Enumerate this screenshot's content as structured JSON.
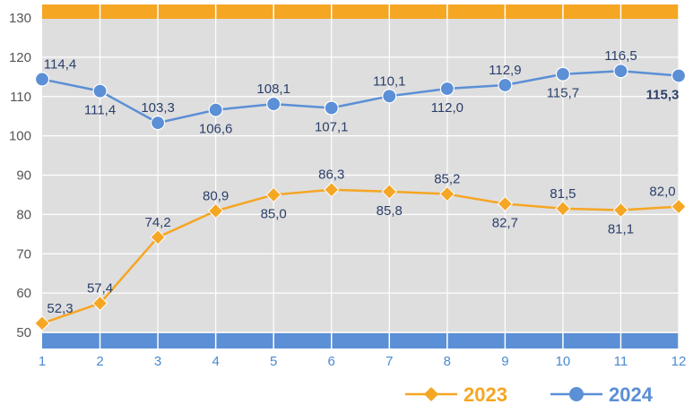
{
  "chart_data": {
    "type": "line",
    "x": [
      1,
      2,
      3,
      4,
      5,
      6,
      7,
      8,
      9,
      10,
      11,
      12
    ],
    "ylim": [
      50,
      130
    ],
    "yticks": [
      50,
      60,
      70,
      80,
      90,
      100,
      110,
      120,
      130
    ],
    "grid": true,
    "legend_position": "bottom-right",
    "series": [
      {
        "name": "2023",
        "color": "#f5a623",
        "marker": "diamond",
        "values": [
          52.3,
          57.4,
          74.2,
          80.9,
          85.0,
          86.3,
          85.8,
          85.2,
          82.7,
          81.5,
          81.1,
          82.0
        ],
        "labels": [
          "52,3",
          "57,4",
          "74,2",
          "80,9",
          "85,0",
          "86,3",
          "85,8",
          "85,2",
          "82,7",
          "81,5",
          "81,1",
          "82,0"
        ],
        "label_side": [
          "above",
          "above",
          "above",
          "above",
          "below",
          "above",
          "below",
          "above",
          "below",
          "above",
          "below",
          "above"
        ]
      },
      {
        "name": "2024",
        "color": "#5b8fd6",
        "marker": "circle",
        "values": [
          114.4,
          111.4,
          103.3,
          106.6,
          108.1,
          107.1,
          110.1,
          112.0,
          112.9,
          115.7,
          116.5,
          115.3
        ],
        "labels": [
          "114,4",
          "111,4",
          "103,3",
          "106,6",
          "108,1",
          "107,1",
          "110,1",
          "112,0",
          "112,9",
          "115,7",
          "116,5",
          "115,3"
        ],
        "label_side": [
          "above",
          "below",
          "above",
          "below",
          "above",
          "below",
          "above",
          "below",
          "above",
          "below",
          "above",
          "below"
        ],
        "bold_last_label": true
      }
    ],
    "top_band_color": "#f5a623",
    "bottom_band_color": "#5b8fd6",
    "plot_background": "#dedede"
  }
}
